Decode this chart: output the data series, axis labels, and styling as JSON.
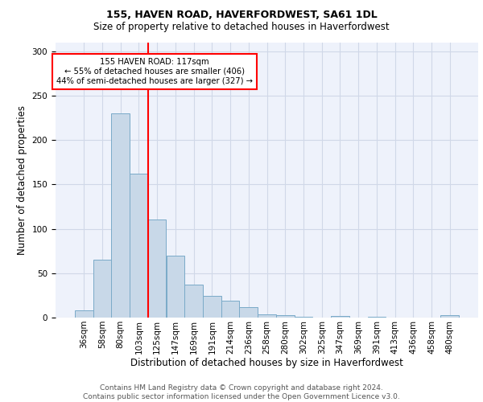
{
  "title1": "155, HAVEN ROAD, HAVERFORDWEST, SA61 1DL",
  "title2": "Size of property relative to detached houses in Haverfordwest",
  "xlabel": "Distribution of detached houses by size in Haverfordwest",
  "ylabel": "Number of detached properties",
  "categories": [
    "36sqm",
    "58sqm",
    "80sqm",
    "103sqm",
    "125sqm",
    "147sqm",
    "169sqm",
    "191sqm",
    "214sqm",
    "236sqm",
    "258sqm",
    "280sqm",
    "302sqm",
    "325sqm",
    "347sqm",
    "369sqm",
    "391sqm",
    "413sqm",
    "436sqm",
    "458sqm",
    "480sqm"
  ],
  "values": [
    8,
    65,
    230,
    162,
    110,
    70,
    37,
    24,
    19,
    12,
    4,
    3,
    1,
    0,
    2,
    0,
    1,
    0,
    0,
    0,
    3
  ],
  "bar_color": "#c8d8e8",
  "bar_edge_color": "#7aaac8",
  "grid_color": "#d0d8e8",
  "background_color": "#eef2fb",
  "red_line_index": 3.5,
  "annotation_line1": "155 HAVEN ROAD: 117sqm",
  "annotation_line2": "← 55% of detached houses are smaller (406)",
  "annotation_line3": "44% of semi-detached houses are larger (327) →",
  "footer": "Contains HM Land Registry data © Crown copyright and database right 2024.\nContains public sector information licensed under the Open Government Licence v3.0.",
  "ylim": [
    0,
    310
  ],
  "yticks": [
    0,
    50,
    100,
    150,
    200,
    250,
    300
  ],
  "title1_fontsize": 9,
  "title2_fontsize": 8.5,
  "ylabel_fontsize": 8.5,
  "xlabel_fontsize": 8.5,
  "tick_fontsize": 7.5,
  "footer_fontsize": 6.5
}
